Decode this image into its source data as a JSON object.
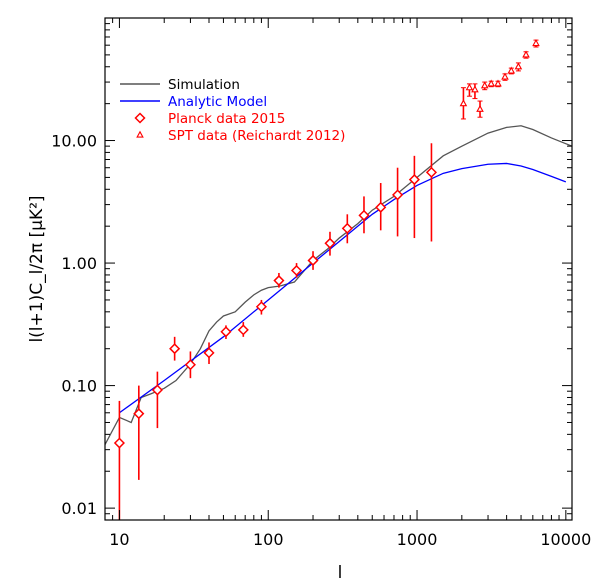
{
  "chart_data": {
    "type": "line",
    "xlabel": "l",
    "ylabel": "l(l+1)C_l/2π [μK²]",
    "xscale": "log",
    "yscale": "log",
    "xlim": [
      8,
      11000
    ],
    "ylim": [
      0.008,
      100
    ],
    "grid": false,
    "legend_position": "top-left",
    "x_ticks": [
      {
        "value": 10,
        "label": "10"
      },
      {
        "value": 100,
        "label": "100"
      },
      {
        "value": 1000,
        "label": "1000"
      },
      {
        "value": 10000,
        "label": "10000"
      }
    ],
    "y_ticks": [
      {
        "value": 0.01,
        "label": "0.01"
      },
      {
        "value": 0.1,
        "label": "0.10"
      },
      {
        "value": 1,
        "label": "1.00"
      },
      {
        "value": 10,
        "label": "10.00"
      }
    ],
    "series": [
      {
        "name": "Simulation",
        "kind": "line",
        "color": "#555555",
        "x": [
          8,
          10,
          12,
          14,
          16,
          18,
          20,
          24,
          30,
          35,
          40,
          45,
          50,
          60,
          70,
          80,
          90,
          100,
          120,
          150,
          200,
          250,
          300,
          400,
          500,
          700,
          1000,
          1500,
          2000,
          3000,
          4000,
          5000,
          6000,
          8000,
          11000
        ],
        "y": [
          0.033,
          0.055,
          0.05,
          0.08,
          0.085,
          0.09,
          0.095,
          0.11,
          0.15,
          0.2,
          0.28,
          0.33,
          0.37,
          0.4,
          0.48,
          0.55,
          0.6,
          0.63,
          0.65,
          0.7,
          1.05,
          1.3,
          1.6,
          2.1,
          2.7,
          3.5,
          5.0,
          7.5,
          9.0,
          11.5,
          12.8,
          13.2,
          12.3,
          10.5,
          9.0
        ]
      },
      {
        "name": "Analytic Model",
        "kind": "line",
        "color": "#0000ff",
        "x": [
          10,
          20,
          50,
          100,
          200,
          300,
          500,
          700,
          1000,
          1500,
          2000,
          3000,
          4000,
          5000,
          6000,
          8000,
          10000
        ],
        "y": [
          0.06,
          0.11,
          0.25,
          0.5,
          1.0,
          1.5,
          2.5,
          3.3,
          4.3,
          5.4,
          5.9,
          6.4,
          6.5,
          6.2,
          5.8,
          5.1,
          4.6
        ]
      },
      {
        "name": "Planck data 2015",
        "kind": "points",
        "marker": "diamond",
        "color": "#ff0000",
        "points": [
          {
            "x": 10,
            "y": 0.034,
            "low": 0.008,
            "high": 0.075
          },
          {
            "x": 13.5,
            "y": 0.059,
            "low": 0.017,
            "high": 0.1
          },
          {
            "x": 18,
            "y": 0.092,
            "low": 0.045,
            "high": 0.13
          },
          {
            "x": 23.5,
            "y": 0.2,
            "low": 0.16,
            "high": 0.25
          },
          {
            "x": 30,
            "y": 0.148,
            "low": 0.115,
            "high": 0.19
          },
          {
            "x": 40,
            "y": 0.185,
            "low": 0.15,
            "high": 0.225
          },
          {
            "x": 52,
            "y": 0.275,
            "low": 0.24,
            "high": 0.31
          },
          {
            "x": 68,
            "y": 0.285,
            "low": 0.25,
            "high": 0.33
          },
          {
            "x": 90,
            "y": 0.44,
            "low": 0.38,
            "high": 0.5
          },
          {
            "x": 118,
            "y": 0.72,
            "low": 0.63,
            "high": 0.83
          },
          {
            "x": 155,
            "y": 0.87,
            "low": 0.76,
            "high": 1.0
          },
          {
            "x": 200,
            "y": 1.05,
            "low": 0.88,
            "high": 1.25
          },
          {
            "x": 260,
            "y": 1.45,
            "low": 1.15,
            "high": 1.8
          },
          {
            "x": 340,
            "y": 1.92,
            "low": 1.45,
            "high": 2.5
          },
          {
            "x": 440,
            "y": 2.45,
            "low": 1.75,
            "high": 3.5
          },
          {
            "x": 570,
            "y": 2.85,
            "low": 1.85,
            "high": 4.5
          },
          {
            "x": 740,
            "y": 3.6,
            "low": 1.65,
            "high": 6.0
          },
          {
            "x": 960,
            "y": 4.8,
            "low": 1.6,
            "high": 7.5
          },
          {
            "x": 1250,
            "y": 5.5,
            "low": 1.5,
            "high": 9.5
          }
        ]
      },
      {
        "name": "SPT data (Reichardt 2012)",
        "kind": "points",
        "marker": "triangle",
        "color": "#ff0000",
        "points": [
          {
            "x": 2050,
            "y": 20,
            "low": 15,
            "high": 27
          },
          {
            "x": 2250,
            "y": 27,
            "low": 23,
            "high": 29
          },
          {
            "x": 2450,
            "y": 26,
            "low": 22,
            "high": 29
          },
          {
            "x": 2650,
            "y": 18,
            "low": 15.5,
            "high": 21
          },
          {
            "x": 2850,
            "y": 28,
            "low": 26,
            "high": 30
          },
          {
            "x": 3150,
            "y": 29,
            "low": 27.5,
            "high": 30.5
          },
          {
            "x": 3500,
            "y": 29,
            "low": 27.5,
            "high": 30.5
          },
          {
            "x": 3900,
            "y": 33,
            "low": 31,
            "high": 35
          },
          {
            "x": 4300,
            "y": 37,
            "low": 35,
            "high": 39
          },
          {
            "x": 4800,
            "y": 40,
            "low": 37,
            "high": 43
          },
          {
            "x": 5400,
            "y": 50,
            "low": 47,
            "high": 53
          },
          {
            "x": 6300,
            "y": 62,
            "low": 58,
            "high": 66
          }
        ]
      }
    ]
  }
}
